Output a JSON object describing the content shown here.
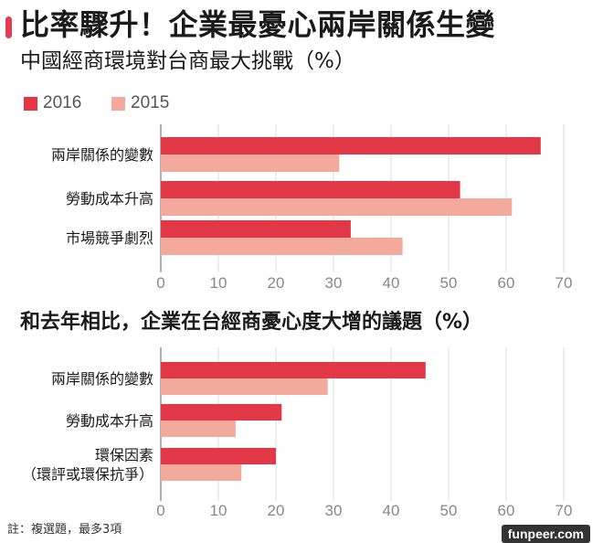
{
  "header": {
    "title": "比率驟升！企業最憂心兩岸關係生變",
    "subtitle": "中國經商環境對台商最大挑戰（%）",
    "accent_color": "#e83a57"
  },
  "legend": [
    {
      "label": "2016",
      "color": "#e13746"
    },
    {
      "label": "2015",
      "color": "#f3a99b"
    }
  ],
  "section2": {
    "title": "和去年相比，企業在台經商憂心度大增的議題（%）"
  },
  "footnote": "註：複選題，最多3項",
  "watermark": "funpeer.com",
  "chart_data": [
    {
      "type": "bar",
      "orientation": "horizontal",
      "title": "中國經商環境對台商最大挑戰（%）",
      "categories": [
        [
          "兩岸關係的變數"
        ],
        [
          "勞動成本升高"
        ],
        [
          "市場競爭劇烈"
        ]
      ],
      "series": [
        {
          "name": "2016",
          "color": "#e13746",
          "values": [
            66,
            52,
            33
          ]
        },
        {
          "name": "2015",
          "color": "#f3a99b",
          "values": [
            31,
            61,
            42
          ]
        }
      ],
      "xlim": [
        0,
        70
      ],
      "ticks": [
        0,
        10,
        20,
        30,
        40,
        50,
        60,
        70
      ],
      "grid": true,
      "legend": "top-left"
    },
    {
      "type": "bar",
      "orientation": "horizontal",
      "title": "和去年相比，企業在台經商憂心度大增的議題（%）",
      "categories": [
        [
          "兩岸關係的變數"
        ],
        [
          "勞動成本升高"
        ],
        [
          "環保因素",
          "（環評或環保抗爭）"
        ]
      ],
      "series": [
        {
          "name": "2016",
          "color": "#e13746",
          "values": [
            46,
            21,
            20
          ]
        },
        {
          "name": "2015",
          "color": "#f3a99b",
          "values": [
            29,
            13,
            14
          ]
        }
      ],
      "xlim": [
        0,
        70
      ],
      "ticks": [
        0,
        10,
        20,
        30,
        40,
        50,
        60,
        70
      ],
      "grid": true
    }
  ]
}
